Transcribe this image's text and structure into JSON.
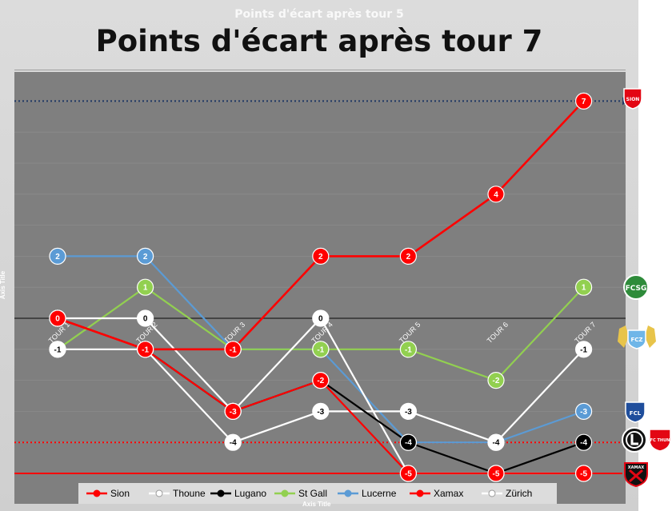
{
  "ghost_title": "Points d'écart après tour 5",
  "chart_data": {
    "type": "line",
    "title": "Points d'écart après tour 7",
    "xlabel": "Axis Title",
    "ylabel": "Axis Title",
    "categories": [
      "TOUR 1",
      "TOUR 2",
      "TOUR 3",
      "TOUR 4",
      "TOUR 5",
      "TOUR 6",
      "TOUR 7"
    ],
    "ylim": [
      -5,
      8
    ],
    "grid": true,
    "legend_position": "bottom",
    "series": [
      {
        "name": "Sion",
        "color": "#ff0000",
        "values": [
          0,
          -1,
          -1,
          2,
          2,
          4,
          7
        ]
      },
      {
        "name": "Thoune",
        "color": "#ffffff",
        "values": [
          0,
          0,
          -3,
          0,
          -5,
          -5,
          -5
        ]
      },
      {
        "name": "Lugano",
        "color": "#000000",
        "values": [
          0,
          -1,
          -3,
          -2,
          -4,
          -5,
          -4
        ]
      },
      {
        "name": "St Gall",
        "color": "#92d050",
        "values": [
          -1,
          1,
          -1,
          -1,
          -1,
          -2,
          1
        ]
      },
      {
        "name": "Lucerne",
        "color": "#5b9bd5",
        "values": [
          2,
          2,
          -1,
          -1,
          -4,
          -4,
          -3
        ]
      },
      {
        "name": "Xamax",
        "color": "#ff0000",
        "values": [
          0,
          -1,
          -3,
          -2,
          -5,
          -5,
          -5
        ]
      },
      {
        "name": "Zürich",
        "color": "#ffffff",
        "values": [
          -1,
          -1,
          -4,
          -3,
          -3,
          -4,
          -1
        ]
      }
    ],
    "reference_lines": [
      {
        "value": 7,
        "color": "#1f3864",
        "style": "dotted"
      },
      {
        "value": -4,
        "color": "#ff0000",
        "style": "dotted"
      },
      {
        "value": -5,
        "color": "#ff0000",
        "style": "solid"
      }
    ]
  },
  "logos": {
    "sion": "SION",
    "stgall": "FCSG",
    "zurich": "FCZ",
    "lucerne": "FCL",
    "thoune": "FC THUN",
    "xamax": "XAMAX"
  }
}
